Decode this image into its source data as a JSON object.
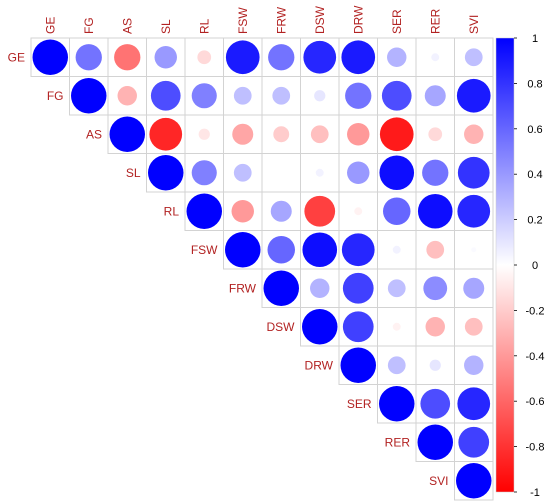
{
  "chart_data": {
    "type": "correlogram",
    "variables": [
      "GE",
      "FG",
      "AS",
      "SL",
      "RL",
      "FSW",
      "FRW",
      "DSW",
      "DRW",
      "SER",
      "RER",
      "SVI"
    ],
    "layout": "upper-triangle",
    "method": "circle",
    "matrix": [
      [
        1.0,
        0.55,
        -0.55,
        0.4,
        -0.15,
        0.9,
        0.55,
        0.85,
        0.9,
        0.3,
        0.05,
        0.25
      ],
      [
        null,
        1.0,
        -0.3,
        0.7,
        0.5,
        0.25,
        0.25,
        0.1,
        0.55,
        0.7,
        0.35,
        0.9
      ],
      [
        null,
        null,
        1.0,
        -0.85,
        -0.1,
        -0.35,
        -0.2,
        -0.25,
        -0.4,
        -0.9,
        -0.15,
        -0.3
      ],
      [
        null,
        null,
        null,
        1.0,
        0.5,
        0.25,
        0.0,
        0.05,
        0.4,
        0.95,
        0.55,
        0.8
      ],
      [
        null,
        null,
        null,
        null,
        1.0,
        -0.4,
        0.35,
        -0.75,
        -0.05,
        0.6,
        0.95,
        0.85
      ],
      [
        null,
        null,
        null,
        null,
        null,
        1.0,
        0.6,
        0.95,
        0.85,
        0.05,
        -0.25,
        0.02
      ],
      [
        null,
        null,
        null,
        null,
        null,
        null,
        1.0,
        0.3,
        0.75,
        0.25,
        0.45,
        0.35
      ],
      [
        null,
        null,
        null,
        null,
        null,
        null,
        null,
        1.0,
        0.75,
        -0.05,
        -0.3,
        -0.25
      ],
      [
        null,
        null,
        null,
        null,
        null,
        null,
        null,
        null,
        1.0,
        0.25,
        0.1,
        0.3
      ],
      [
        null,
        null,
        null,
        null,
        null,
        null,
        null,
        null,
        null,
        1.0,
        0.7,
        0.85
      ],
      [
        null,
        null,
        null,
        null,
        null,
        null,
        null,
        null,
        null,
        null,
        1.0,
        0.75
      ],
      [
        null,
        null,
        null,
        null,
        null,
        null,
        null,
        null,
        null,
        null,
        null,
        1.0
      ]
    ],
    "colorbar": {
      "range": [
        -1,
        1
      ],
      "ticks": [
        1,
        0.8,
        0.6,
        0.4,
        0.2,
        0,
        -0.2,
        -0.4,
        -0.6,
        -0.8,
        -1
      ],
      "tick_labels": [
        "1",
        "0.8",
        "0.6",
        "0.4",
        "0.2",
        "0",
        "-0.2",
        "-0.4",
        "-0.6",
        "-0.8",
        "-1"
      ],
      "placement": "right"
    },
    "colors": {
      "positive": "#0000ff",
      "neutral": "#ffffff",
      "negative": "#ff0000",
      "label": "#b22222",
      "grid": "#d3d3d3"
    },
    "grid": true
  }
}
